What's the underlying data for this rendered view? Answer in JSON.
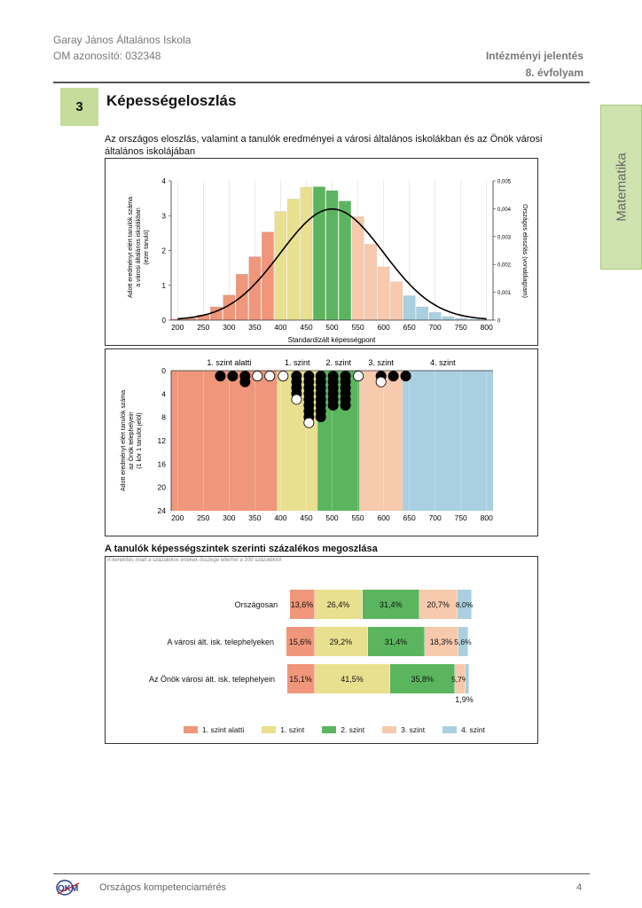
{
  "header": {
    "school": "Garay János Általános Iskola",
    "om": "OM azonosító: 032348",
    "report": "Intézményi jelentés",
    "grade": "8. évfolyam"
  },
  "section": {
    "number": "3",
    "title": "Képességeloszlás"
  },
  "side_tab": "Matematika",
  "intro": "Az országos eloszlás, valamint a tanulók eredményei a városi általános iskolákban és az Önök városi általános iskolájában",
  "colors": {
    "level_below1": "#f0967a",
    "level_1": "#e8e08e",
    "level_2": "#5bb55e",
    "level_3": "#f7c9ad",
    "level_4": "#a9d0e0"
  },
  "chart_data": [
    {
      "type": "bar",
      "x_label": "Standardizált képességpont",
      "y_label_left": "Adott eredményt elért tanulók száma a városi általános iskolákban (ezer tanuló)",
      "y_label_right": "Országos eloszlás (vonaldiagram)",
      "x_ticks": [
        "200",
        "250",
        "300",
        "350",
        "400",
        "450",
        "500",
        "550",
        "600",
        "650",
        "700",
        "750",
        "800"
      ],
      "y_ticks_left": [
        "0",
        "1",
        "2",
        "3",
        "4"
      ],
      "y_ticks_right": [
        "0",
        "0,001",
        "0,002",
        "0,003",
        "0,004",
        "0,005"
      ],
      "xlim": [
        187.5,
        812.5
      ],
      "ylim_left": [
        0,
        4
      ],
      "ylim_right": [
        0,
        0.005
      ],
      "bin_width": 25,
      "bins": [
        {
          "x": 200,
          "v": 0.03,
          "level": 0
        },
        {
          "x": 225,
          "v": 0.06,
          "level": 0
        },
        {
          "x": 250,
          "v": 0.15,
          "level": 0
        },
        {
          "x": 275,
          "v": 0.38,
          "level": 0
        },
        {
          "x": 300,
          "v": 0.72,
          "level": 0
        },
        {
          "x": 325,
          "v": 1.32,
          "level": 0
        },
        {
          "x": 350,
          "v": 1.82,
          "level": 0
        },
        {
          "x": 375,
          "v": 2.53,
          "level": 0
        },
        {
          "x": 400,
          "v": 3.12,
          "level": 1
        },
        {
          "x": 425,
          "v": 3.48,
          "level": 1
        },
        {
          "x": 450,
          "v": 3.82,
          "level": 1
        },
        {
          "x": 475,
          "v": 3.83,
          "level": 2
        },
        {
          "x": 500,
          "v": 3.72,
          "level": 2
        },
        {
          "x": 525,
          "v": 3.42,
          "level": 2
        },
        {
          "x": 550,
          "v": 2.97,
          "level": 3
        },
        {
          "x": 575,
          "v": 2.18,
          "level": 3
        },
        {
          "x": 600,
          "v": 1.53,
          "level": 3
        },
        {
          "x": 625,
          "v": 1.1,
          "level": 3
        },
        {
          "x": 650,
          "v": 0.7,
          "level": 4
        },
        {
          "x": 675,
          "v": 0.38,
          "level": 4
        },
        {
          "x": 700,
          "v": 0.22,
          "level": 4
        },
        {
          "x": 725,
          "v": 0.1,
          "level": 4
        },
        {
          "x": 750,
          "v": 0.05,
          "level": 4
        },
        {
          "x": 775,
          "v": 0.02,
          "level": 4
        },
        {
          "x": 800,
          "v": 0.01,
          "level": 4
        }
      ],
      "curve": {
        "mean": 500,
        "sd": 100,
        "label": "Országos eloszlás"
      }
    },
    {
      "type": "scatter",
      "y_label": "Adott eredményt elért tanulók száma az Önök telephelyein (1 kör 1 tanulót jelöl)",
      "x_ticks": [
        "200",
        "250",
        "300",
        "350",
        "400",
        "450",
        "500",
        "550",
        "600",
        "650",
        "700",
        "750",
        "800"
      ],
      "y_ticks": [
        "0",
        "4",
        "8",
        "12",
        "16",
        "20",
        "24"
      ],
      "xlim": [
        187.5,
        812.5
      ],
      "ylim": [
        0,
        24
      ],
      "level_labels": [
        "1. szint alatti",
        "1. szint",
        "2. szint",
        "3. szint",
        "4. szint"
      ],
      "level_bounds": [
        [
          187.5,
          393
        ],
        [
          393,
          472
        ],
        [
          472,
          553
        ],
        [
          553,
          637
        ],
        [
          637,
          812.5
        ]
      ],
      "columns": [
        {
          "x": 283,
          "filled": 1,
          "open": 0
        },
        {
          "x": 307,
          "filled": 1,
          "open": 0
        },
        {
          "x": 331,
          "filled": 2,
          "open": 0
        },
        {
          "x": 355,
          "filled": 0,
          "open": 1
        },
        {
          "x": 379,
          "filled": 0,
          "open": 1
        },
        {
          "x": 405,
          "filled": 0,
          "open": 1
        },
        {
          "x": 431,
          "filled": 4,
          "open": 1
        },
        {
          "x": 455,
          "filled": 8,
          "open": 1
        },
        {
          "x": 478,
          "filled": 8,
          "open": 0
        },
        {
          "x": 502,
          "filled": 6,
          "open": 0
        },
        {
          "x": 526,
          "filled": 6,
          "open": 0
        },
        {
          "x": 551,
          "filled": 0,
          "open": 1
        },
        {
          "x": 595,
          "filled": 1,
          "open": 1
        },
        {
          "x": 619,
          "filled": 1,
          "open": 0
        },
        {
          "x": 643,
          "filled": 1,
          "open": 0
        }
      ]
    },
    {
      "type": "bar",
      "orientation": "horizontal-stacked",
      "title": "A tanulók képességszintek szerinti százalékos megoszlása",
      "note": "A kerekítés miatt a százalékos értékek összege eltérhet a 100 százaléktól.",
      "legend": [
        "1. szint alatti",
        "1. szint",
        "2. szint",
        "3. szint",
        "4. szint"
      ],
      "rows": [
        {
          "label": "Országosan",
          "values": [
            13.6,
            26.4,
            31.4,
            20.7,
            8.0
          ],
          "labels": [
            "13,6%",
            "26,4%",
            "31,4%",
            "20,7%",
            "8,0%"
          ],
          "offset": -13.6
        },
        {
          "label": "A városi ált. isk. telephelyeken",
          "values": [
            15.6,
            29.2,
            31.4,
            18.3,
            5.6
          ],
          "labels": [
            "15,6%",
            "29,2%",
            "31,4%",
            "18,3%",
            "5,6%"
          ],
          "offset": -15.6
        },
        {
          "label": "Az Önök városi ált. isk. telephelyein",
          "values": [
            15.1,
            41.5,
            35.8,
            5.7,
            1.9
          ],
          "labels": [
            "15,1%",
            "41,5%",
            "35,8%",
            "5,7%",
            "1,9%"
          ],
          "offset": -15.1
        }
      ]
    }
  ],
  "footer": {
    "logo": "OKM",
    "label": "Országos kompetenciamérés",
    "page": "4"
  }
}
